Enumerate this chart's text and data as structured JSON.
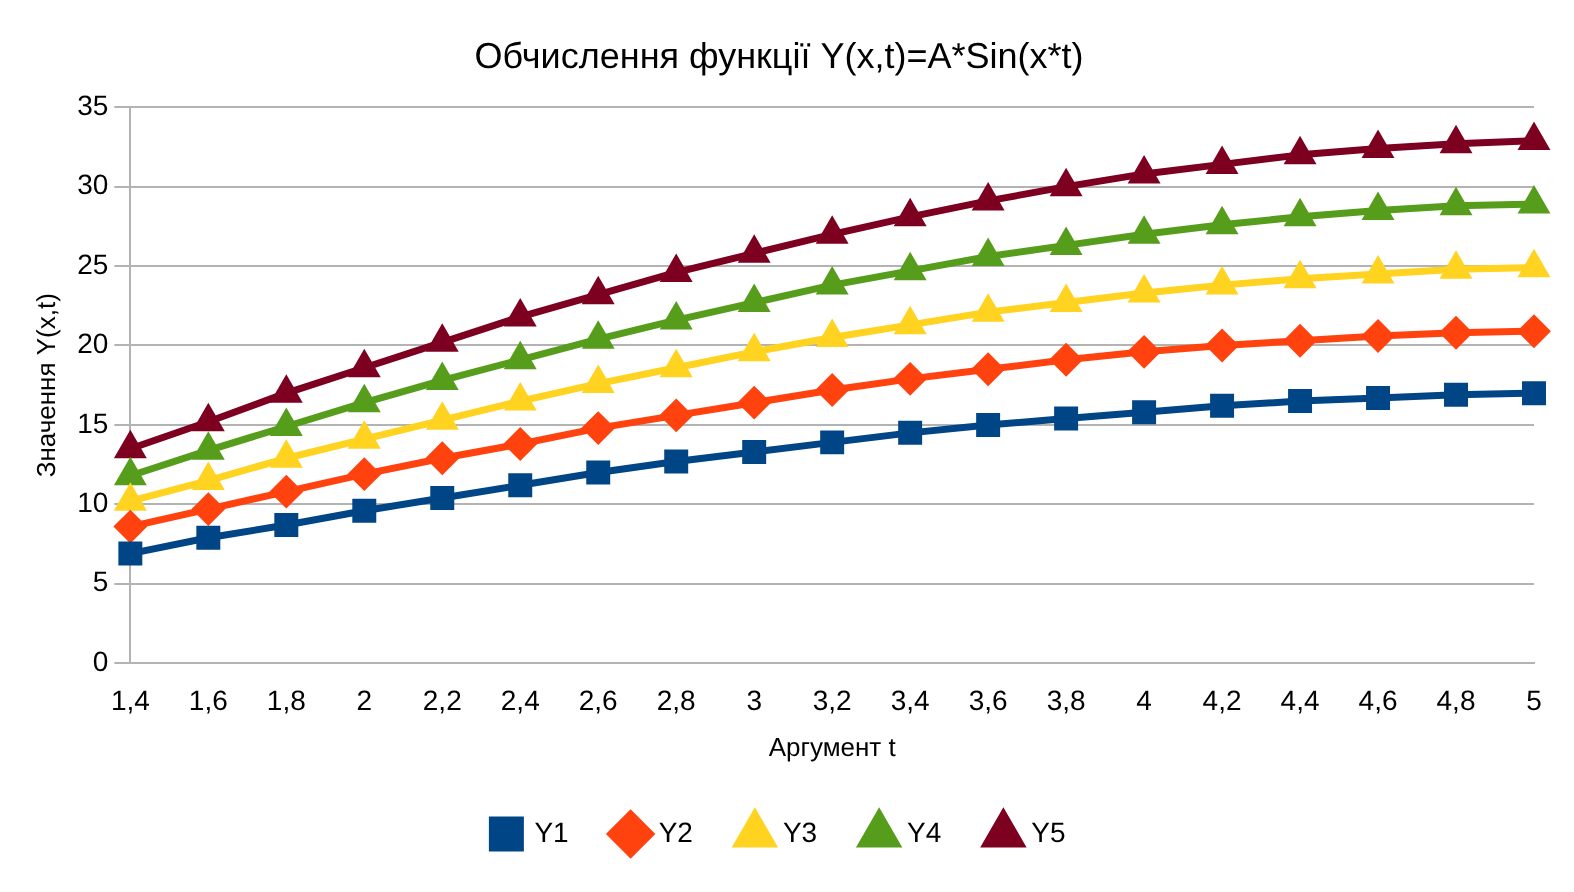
{
  "chart_data": {
    "type": "line",
    "title": "Обчислення функції Y(x,t)=A*Sin(x*t)",
    "xlabel": "Аргумент t",
    "ylabel": "Значення Y(x,t)",
    "categories": [
      "1,4",
      "1,6",
      "1,8",
      "2",
      "2,2",
      "2,4",
      "2,6",
      "2,8",
      "3",
      "3,2",
      "3,4",
      "3,6",
      "3,8",
      "4",
      "4,2",
      "4,4",
      "4,6",
      "4,8",
      "5"
    ],
    "series": [
      {
        "name": "Y1",
        "color": "#004586",
        "marker": "square",
        "values": [
          6.9,
          7.9,
          8.7,
          9.6,
          10.4,
          11.2,
          12.0,
          12.7,
          13.3,
          13.9,
          14.5,
          15.0,
          15.4,
          15.8,
          16.2,
          16.5,
          16.7,
          16.9,
          17.0
        ]
      },
      {
        "name": "Y2",
        "color": "#ff420e",
        "marker": "diamond",
        "values": [
          8.6,
          9.7,
          10.8,
          11.9,
          12.9,
          13.8,
          14.8,
          15.6,
          16.4,
          17.2,
          17.9,
          18.5,
          19.1,
          19.6,
          20.0,
          20.3,
          20.6,
          20.8,
          20.9
        ]
      },
      {
        "name": "Y3",
        "color": "#ffd320",
        "marker": "triangle",
        "values": [
          10.2,
          11.5,
          12.9,
          14.1,
          15.3,
          16.5,
          17.6,
          18.6,
          19.6,
          20.5,
          21.3,
          22.1,
          22.7,
          23.3,
          23.8,
          24.2,
          24.5,
          24.8,
          24.9
        ]
      },
      {
        "name": "Y4",
        "color": "#579d1c",
        "marker": "triangle",
        "values": [
          11.8,
          13.4,
          14.9,
          16.4,
          17.8,
          19.1,
          20.4,
          21.6,
          22.7,
          23.8,
          24.7,
          25.6,
          26.3,
          27.0,
          27.6,
          28.1,
          28.5,
          28.8,
          28.9
        ]
      },
      {
        "name": "Y5",
        "color": "#7e0021",
        "marker": "triangle",
        "values": [
          13.5,
          15.2,
          17.0,
          18.6,
          20.2,
          21.8,
          23.2,
          24.6,
          25.8,
          27.0,
          28.1,
          29.1,
          30.0,
          30.8,
          31.4,
          32.0,
          32.4,
          32.7,
          32.9
        ]
      }
    ],
    "ylim": [
      0,
      35
    ],
    "yticks": [
      0,
      5,
      10,
      15,
      20,
      25,
      30,
      35
    ],
    "grid": "y",
    "legend": "bottom",
    "line_style": "solid"
  }
}
